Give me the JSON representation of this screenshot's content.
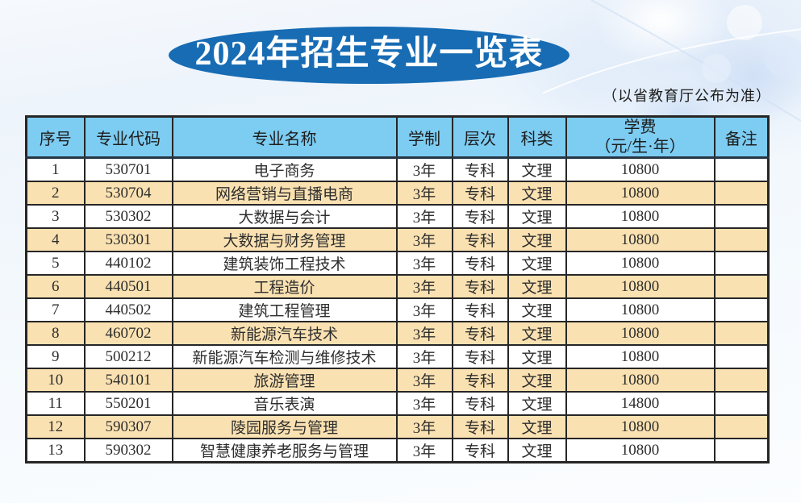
{
  "title": "2024年招生专业一览表",
  "subtitle": "（以省教育厅公布为准）",
  "colors": {
    "banner_blue": "#176cb4",
    "header_blue": "#7dccf2",
    "alt_row_orange": "#fae1b1",
    "border_dark": "#262626",
    "background_tint": "#eef4fb"
  },
  "table": {
    "headers": {
      "no": "序号",
      "code": "专业代码",
      "name": "专业名称",
      "duration": "学制",
      "level": "层次",
      "category": "科类",
      "tuition_line1": "学费",
      "tuition_line2": "（元/生·年）",
      "remark": "备注"
    },
    "rows": [
      {
        "no": "1",
        "code": "530701",
        "name": "电子商务",
        "duration": "3年",
        "level": "专科",
        "category": "文理",
        "tuition": "10800",
        "remark": ""
      },
      {
        "no": "2",
        "code": "530704",
        "name": "网络营销与直播电商",
        "duration": "3年",
        "level": "专科",
        "category": "文理",
        "tuition": "10800",
        "remark": ""
      },
      {
        "no": "3",
        "code": "530302",
        "name": "大数据与会计",
        "duration": "3年",
        "level": "专科",
        "category": "文理",
        "tuition": "10800",
        "remark": ""
      },
      {
        "no": "4",
        "code": "530301",
        "name": "大数据与财务管理",
        "duration": "3年",
        "level": "专科",
        "category": "文理",
        "tuition": "10800",
        "remark": ""
      },
      {
        "no": "5",
        "code": "440102",
        "name": "建筑装饰工程技术",
        "duration": "3年",
        "level": "专科",
        "category": "文理",
        "tuition": "10800",
        "remark": ""
      },
      {
        "no": "6",
        "code": "440501",
        "name": "工程造价",
        "duration": "3年",
        "level": "专科",
        "category": "文理",
        "tuition": "10800",
        "remark": ""
      },
      {
        "no": "7",
        "code": "440502",
        "name": "建筑工程管理",
        "duration": "3年",
        "level": "专科",
        "category": "文理",
        "tuition": "10800",
        "remark": ""
      },
      {
        "no": "8",
        "code": "460702",
        "name": "新能源汽车技术",
        "duration": "3年",
        "level": "专科",
        "category": "文理",
        "tuition": "10800",
        "remark": ""
      },
      {
        "no": "9",
        "code": "500212",
        "name": "新能源汽车检测与维修技术",
        "duration": "3年",
        "level": "专科",
        "category": "文理",
        "tuition": "10800",
        "remark": ""
      },
      {
        "no": "10",
        "code": "540101",
        "name": "旅游管理",
        "duration": "3年",
        "level": "专科",
        "category": "文理",
        "tuition": "10800",
        "remark": ""
      },
      {
        "no": "11",
        "code": "550201",
        "name": "音乐表演",
        "duration": "3年",
        "level": "专科",
        "category": "文理",
        "tuition": "14800",
        "remark": ""
      },
      {
        "no": "12",
        "code": "590307",
        "name": "陵园服务与管理",
        "duration": "3年",
        "level": "专科",
        "category": "文理",
        "tuition": "10800",
        "remark": ""
      },
      {
        "no": "13",
        "code": "590302",
        "name": "智慧健康养老服务与管理",
        "duration": "3年",
        "level": "专科",
        "category": "文理",
        "tuition": "10800",
        "remark": ""
      }
    ]
  }
}
